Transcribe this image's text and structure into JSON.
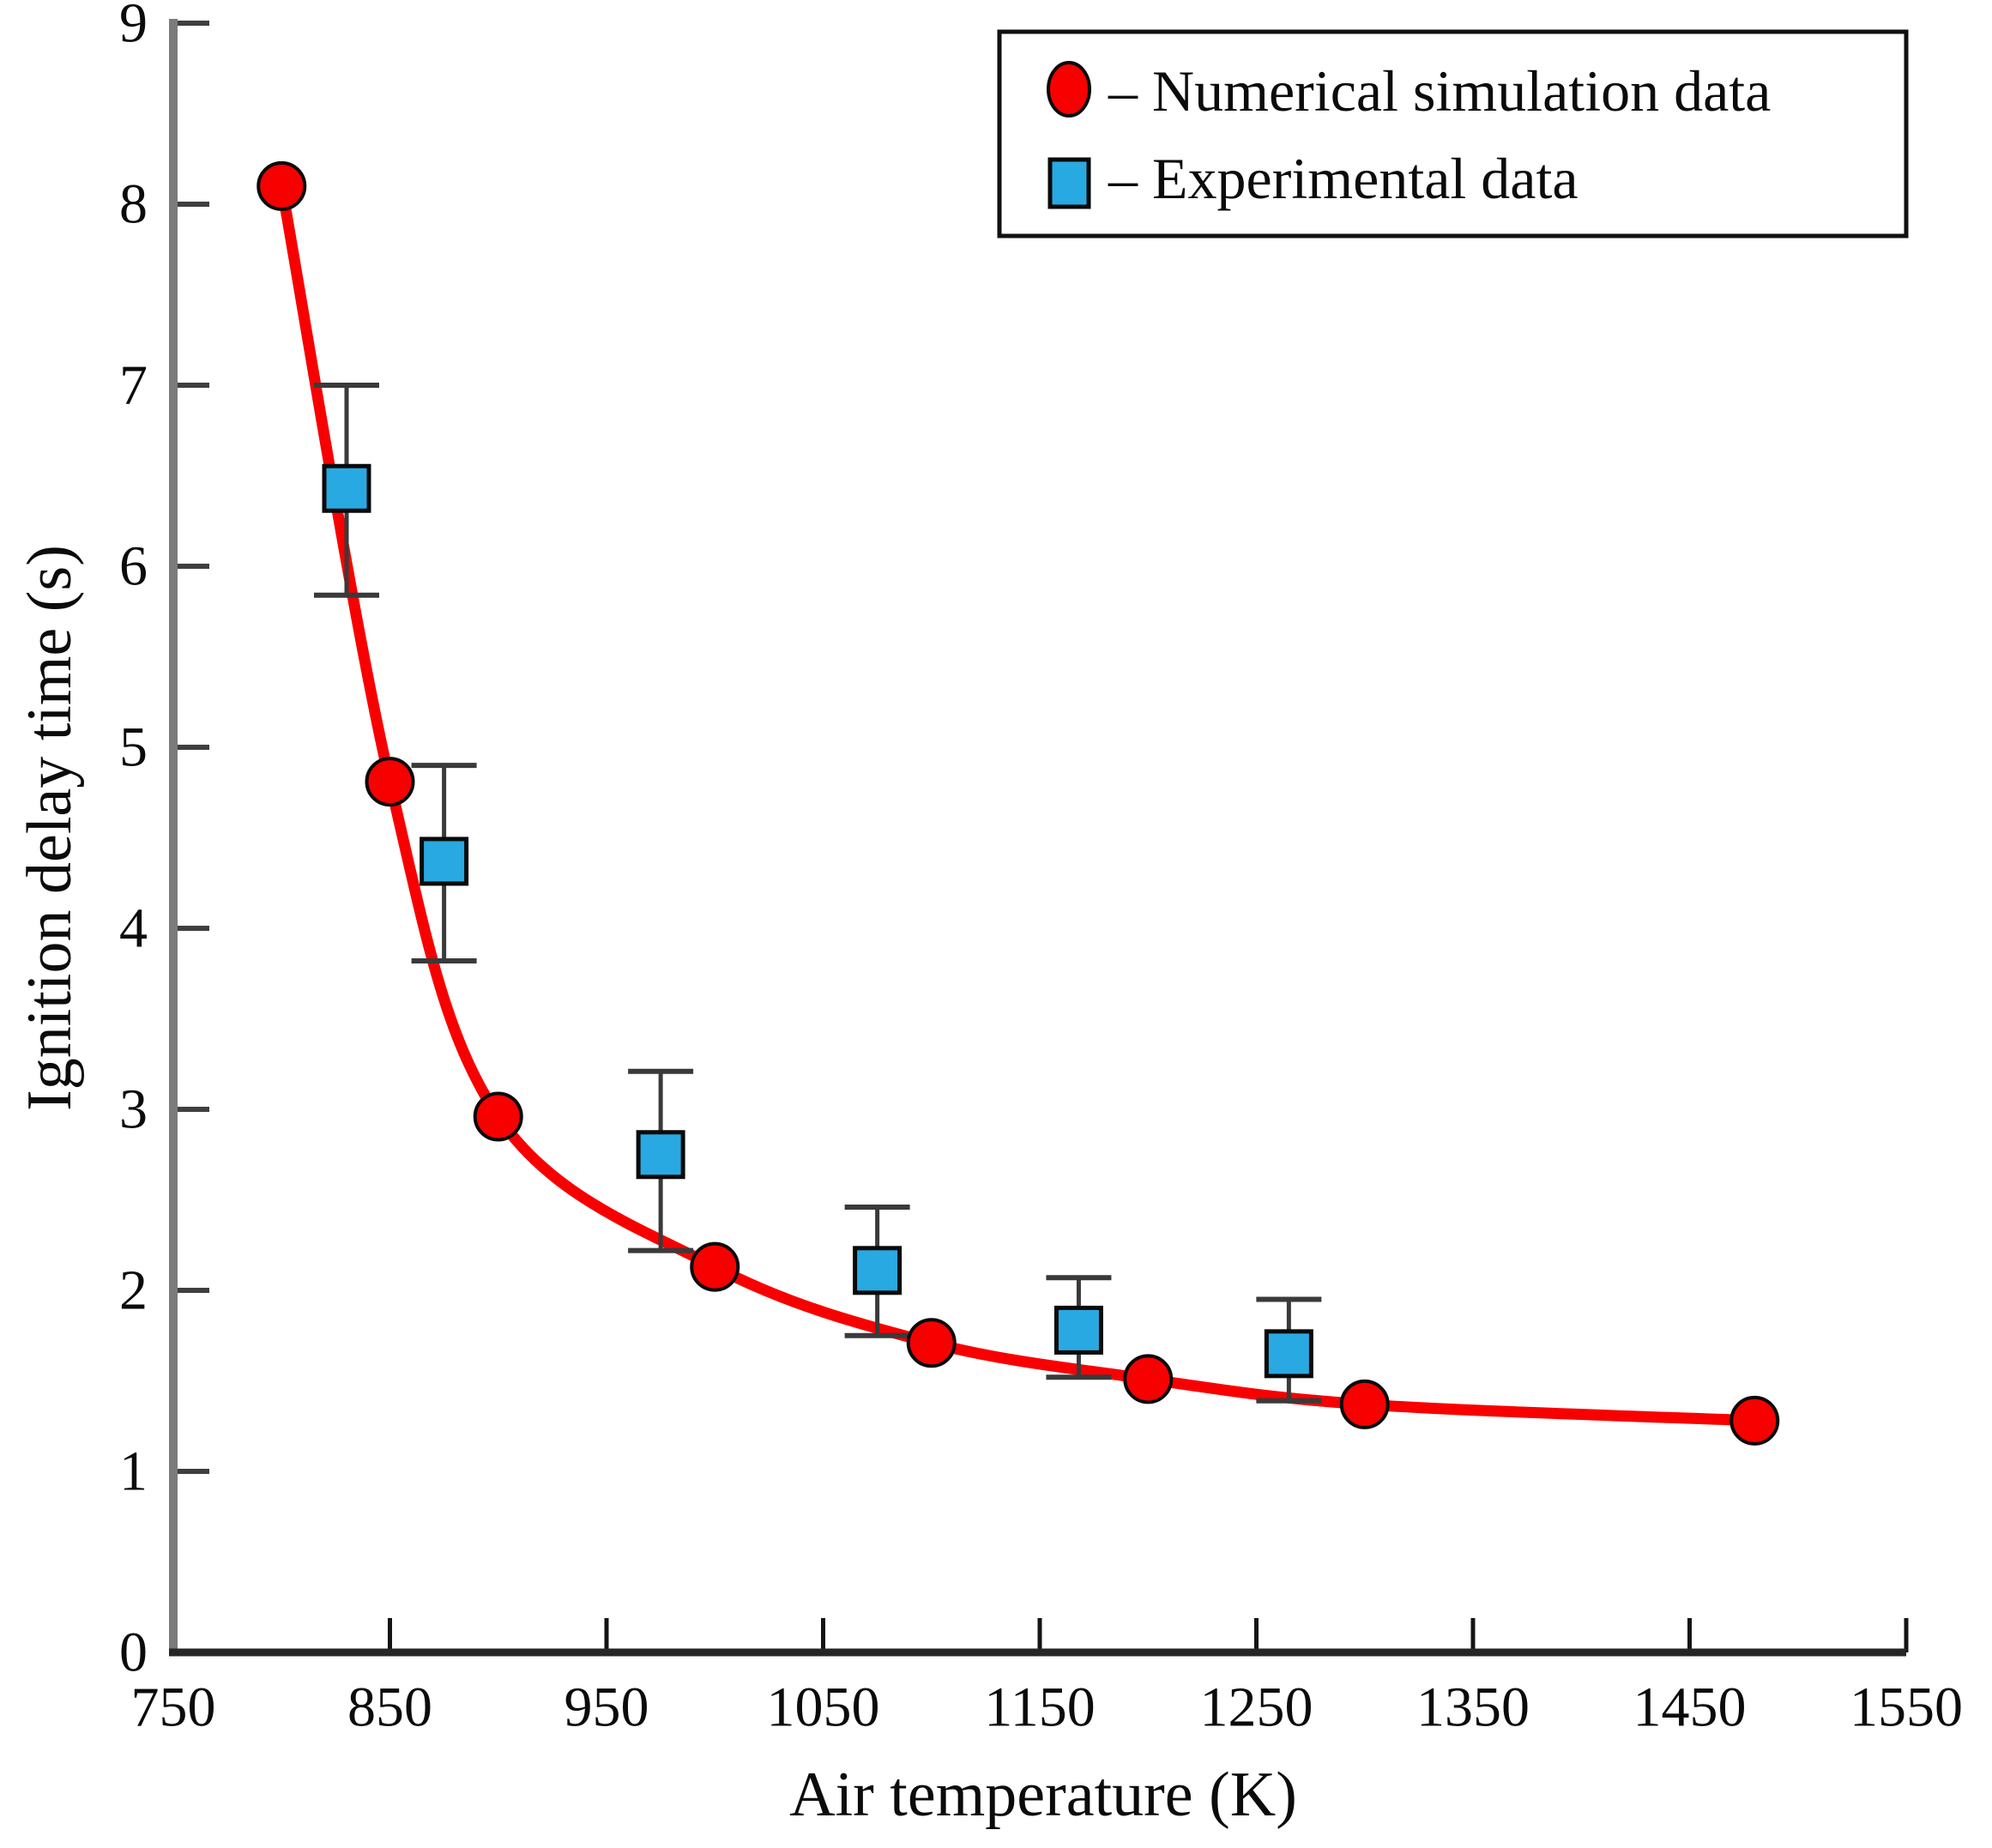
{
  "figure": {
    "background": "#ffffff"
  },
  "legend": {
    "position": "top-right",
    "items": [
      {
        "marker": "circle",
        "label": "– Numerical simulation data"
      },
      {
        "marker": "square",
        "label": "– Experimental data"
      }
    ]
  },
  "chart_data": {
    "type": "line",
    "title": "",
    "xlabel": "Air temperature (K)",
    "ylabel": "Ignition delay time (s)",
    "xlim": [
      750,
      1550
    ],
    "ylim": [
      0,
      9
    ],
    "x_ticks": [
      750,
      850,
      950,
      1050,
      1150,
      1250,
      1350,
      1450,
      1550
    ],
    "y_ticks": [
      0,
      1,
      2,
      3,
      4,
      5,
      6,
      7,
      8,
      9
    ],
    "grid": false,
    "legend_position": "top-right",
    "series": [
      {
        "name": "Numerical simulation data",
        "type": "line+markers",
        "marker": "circle",
        "x": [
          800,
          850,
          900,
          1000,
          1100,
          1200,
          1300,
          1480
        ],
        "y": [
          8.1,
          4.81,
          2.96,
          2.13,
          1.71,
          1.51,
          1.37,
          1.28
        ]
      },
      {
        "name": "Experimental data",
        "type": "scatter+errorbars",
        "marker": "square",
        "points": [
          {
            "x": 830,
            "y": 6.43,
            "y_low": 5.84,
            "y_high": 7.0
          },
          {
            "x": 875,
            "y": 4.37,
            "y_low": 3.82,
            "y_high": 4.9
          },
          {
            "x": 975,
            "y": 2.75,
            "y_low": 2.22,
            "y_high": 3.21
          },
          {
            "x": 1075,
            "y": 2.11,
            "y_low": 1.75,
            "y_high": 2.46
          },
          {
            "x": 1168,
            "y": 1.78,
            "y_low": 1.52,
            "y_high": 2.07
          },
          {
            "x": 1265,
            "y": 1.65,
            "y_low": 1.39,
            "y_high": 1.95
          }
        ]
      }
    ]
  },
  "colors": {
    "simulation_red": "#f80000",
    "experimental_blue": "#29a9e1",
    "marker_outline": "#0a0a0a",
    "error_bar": "#3a3a3a",
    "x_axis": "#262626",
    "y_axis": "#7b7b7b",
    "x_tick": "#141414",
    "y_tick": "#3f3f3f",
    "text": "#0b0b0b",
    "legend_border": "#111111",
    "legend_fill": "#ffffff"
  }
}
